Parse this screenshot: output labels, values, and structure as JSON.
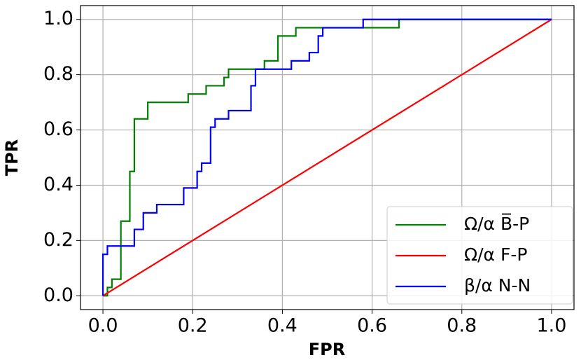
{
  "chart_data": {
    "type": "line",
    "xlabel": "FPR",
    "ylabel": "TPR",
    "xlim": [
      -0.05,
      1.05
    ],
    "ylim": [
      -0.05,
      1.05
    ],
    "xticks": [
      {
        "value": 0,
        "label": "0.0"
      },
      0.2,
      0.4,
      0.6,
      0.8,
      {
        "value": 1,
        "label": "1.0"
      }
    ],
    "yticks": [
      {
        "value": 0,
        "label": "0.0"
      },
      0.2,
      0.4,
      0.6,
      0.8,
      {
        "value": 1,
        "label": "1.0"
      }
    ],
    "grid": true,
    "legend": "lower right",
    "series": [
      {
        "name": "Ω/α B̅-P",
        "color": "#008000",
        "x": [
          0,
          0.01,
          0.01,
          0.02,
          0.02,
          0.04,
          0.04,
          0.06,
          0.06,
          0.07,
          0.07,
          0.1,
          0.1,
          0.19,
          0.19,
          0.23,
          0.23,
          0.27,
          0.27,
          0.28,
          0.28,
          0.36,
          0.36,
          0.39,
          0.39,
          0.43,
          0.43,
          0.66,
          0.66,
          1.0
        ],
        "values": [
          0,
          0,
          0.03,
          0.03,
          0.06,
          0.06,
          0.27,
          0.27,
          0.45,
          0.45,
          0.64,
          0.64,
          0.7,
          0.7,
          0.73,
          0.73,
          0.76,
          0.76,
          0.79,
          0.79,
          0.82,
          0.82,
          0.85,
          0.85,
          0.94,
          0.94,
          0.97,
          0.97,
          1.0,
          1.0
        ]
      },
      {
        "name": "Ω/α F-P",
        "color": "#ff0000",
        "x": [
          0,
          1.0
        ],
        "values": [
          0,
          1.0
        ]
      },
      {
        "name": "β/α N-N",
        "color": "#0000ff",
        "x": [
          0,
          0,
          0.01,
          0.01,
          0.07,
          0.07,
          0.09,
          0.09,
          0.12,
          0.12,
          0.18,
          0.18,
          0.21,
          0.21,
          0.22,
          0.22,
          0.24,
          0.24,
          0.25,
          0.25,
          0.28,
          0.28,
          0.33,
          0.33,
          0.34,
          0.34,
          0.42,
          0.42,
          0.46,
          0.46,
          0.48,
          0.48,
          0.49,
          0.49,
          0.58,
          0.58,
          1.0
        ],
        "values": [
          0,
          0.15,
          0.15,
          0.18,
          0.18,
          0.24,
          0.24,
          0.3,
          0.3,
          0.33,
          0.33,
          0.39,
          0.39,
          0.45,
          0.45,
          0.48,
          0.48,
          0.61,
          0.61,
          0.64,
          0.64,
          0.67,
          0.67,
          0.76,
          0.76,
          0.82,
          0.82,
          0.85,
          0.85,
          0.88,
          0.88,
          0.94,
          0.94,
          0.97,
          0.97,
          1.0,
          1.0
        ]
      }
    ]
  }
}
